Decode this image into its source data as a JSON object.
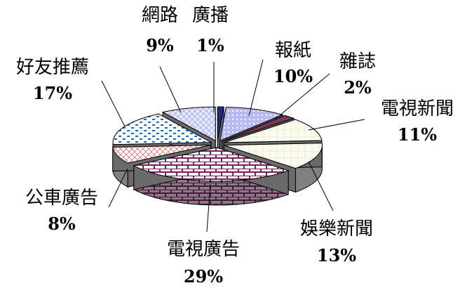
{
  "chart_data": {
    "type": "pie",
    "style": "3d-exploded",
    "slices": [
      {
        "label": "廣播",
        "value": 1,
        "value_label": "1%",
        "color": "#1f2a8a",
        "pattern": "solid"
      },
      {
        "label": "報紙",
        "value": 10,
        "value_label": "10%",
        "color": "#8a8ce8",
        "pattern": "dots"
      },
      {
        "label": "雜誌",
        "value": 2,
        "value_label": "2%",
        "color": "#7a3a5a",
        "pattern": "solid"
      },
      {
        "label": "電視新聞",
        "value": 11,
        "value_label": "11%",
        "color": "#fff6c8",
        "pattern": "grid"
      },
      {
        "label": "娛樂新聞",
        "value": 13,
        "value_label": "13%",
        "color": "#d0f4f8",
        "pattern": "grid"
      },
      {
        "label": "電視廣告",
        "value": 29,
        "value_label": "29%",
        "color": "#8a2a6a",
        "pattern": "brick"
      },
      {
        "label": "公車廣告",
        "value": 8,
        "value_label": "8%",
        "color": "#c88080",
        "pattern": "cross"
      },
      {
        "label": "好友推薦",
        "value": 17,
        "value_label": "17%",
        "color": "#2a78c8",
        "pattern": "dash"
      },
      {
        "label": "網路",
        "value": 9,
        "value_label": "9%",
        "color": "#c8d0f4",
        "pattern": "check"
      }
    ]
  }
}
